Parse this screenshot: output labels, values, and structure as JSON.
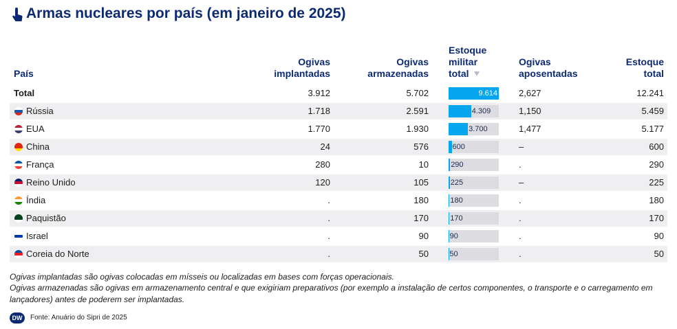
{
  "title": "Armas nucleares por país (em janeiro de 2025)",
  "table": {
    "headers": {
      "country": "País",
      "deployed": "Ogivas implantadas",
      "stored": "Ogivas armazenadas",
      "military": "Estoque militar total",
      "retired": "Ogivas aposentadas",
      "total": "Estoque total"
    },
    "rows": [
      {
        "country": "Total",
        "deployed": "3.912",
        "stored": "5.702",
        "military": {
          "value": 9614,
          "label": "9.614"
        },
        "retired": "2,627",
        "total": "12.241"
      },
      {
        "country": "Rússia",
        "deployed": "1.718",
        "stored": "2.591",
        "military": {
          "value": 4309,
          "label": "4.309"
        },
        "retired": "1,150",
        "total": "5.459"
      },
      {
        "country": "EUA",
        "deployed": "1.770",
        "stored": "1.930",
        "military": {
          "value": 3700,
          "label": "3.700"
        },
        "retired": "1,477",
        "total": "5.177"
      },
      {
        "country": "China",
        "deployed": "24",
        "stored": "576",
        "military": {
          "value": 600,
          "label": "600"
        },
        "retired": "–",
        "total": "600"
      },
      {
        "country": "França",
        "deployed": "280",
        "stored": "10",
        "military": {
          "value": 290,
          "label": "290"
        },
        "retired": ".",
        "total": "290"
      },
      {
        "country": "Reino Unido",
        "deployed": "120",
        "stored": "105",
        "military": {
          "value": 225,
          "label": "225"
        },
        "retired": "–",
        "total": "225"
      },
      {
        "country": "Índia",
        "deployed": ".",
        "stored": "180",
        "military": {
          "value": 180,
          "label": "180"
        },
        "retired": ".",
        "total": "180"
      },
      {
        "country": "Paquistão",
        "deployed": ".",
        "stored": "170",
        "military": {
          "value": 170,
          "label": "170"
        },
        "retired": ".",
        "total": "170"
      },
      {
        "country": "Israel",
        "deployed": ".",
        "stored": "90",
        "military": {
          "value": 90,
          "label": "90"
        },
        "retired": ".",
        "total": "90"
      },
      {
        "country": "Coreia do Norte",
        "deployed": ".",
        "stored": "50",
        "military": {
          "value": 50,
          "label": "50"
        },
        "retired": ".",
        "total": "50"
      }
    ]
  },
  "notes": [
    "Ogivas implantadas são ogivas colocadas em mísseis ou localizadas em bases com forças operacionais.",
    "Ogivas armazenadas são ogivas em armazenamento central e que exigiriam preparativos (por exemplo a instalação de certos componentes, o transporte e o carregamento em lançadores) antes de poderem ser implantadas."
  ],
  "logo": "DW",
  "source": "Fonte: Anuário do Sipri de 2025"
}
